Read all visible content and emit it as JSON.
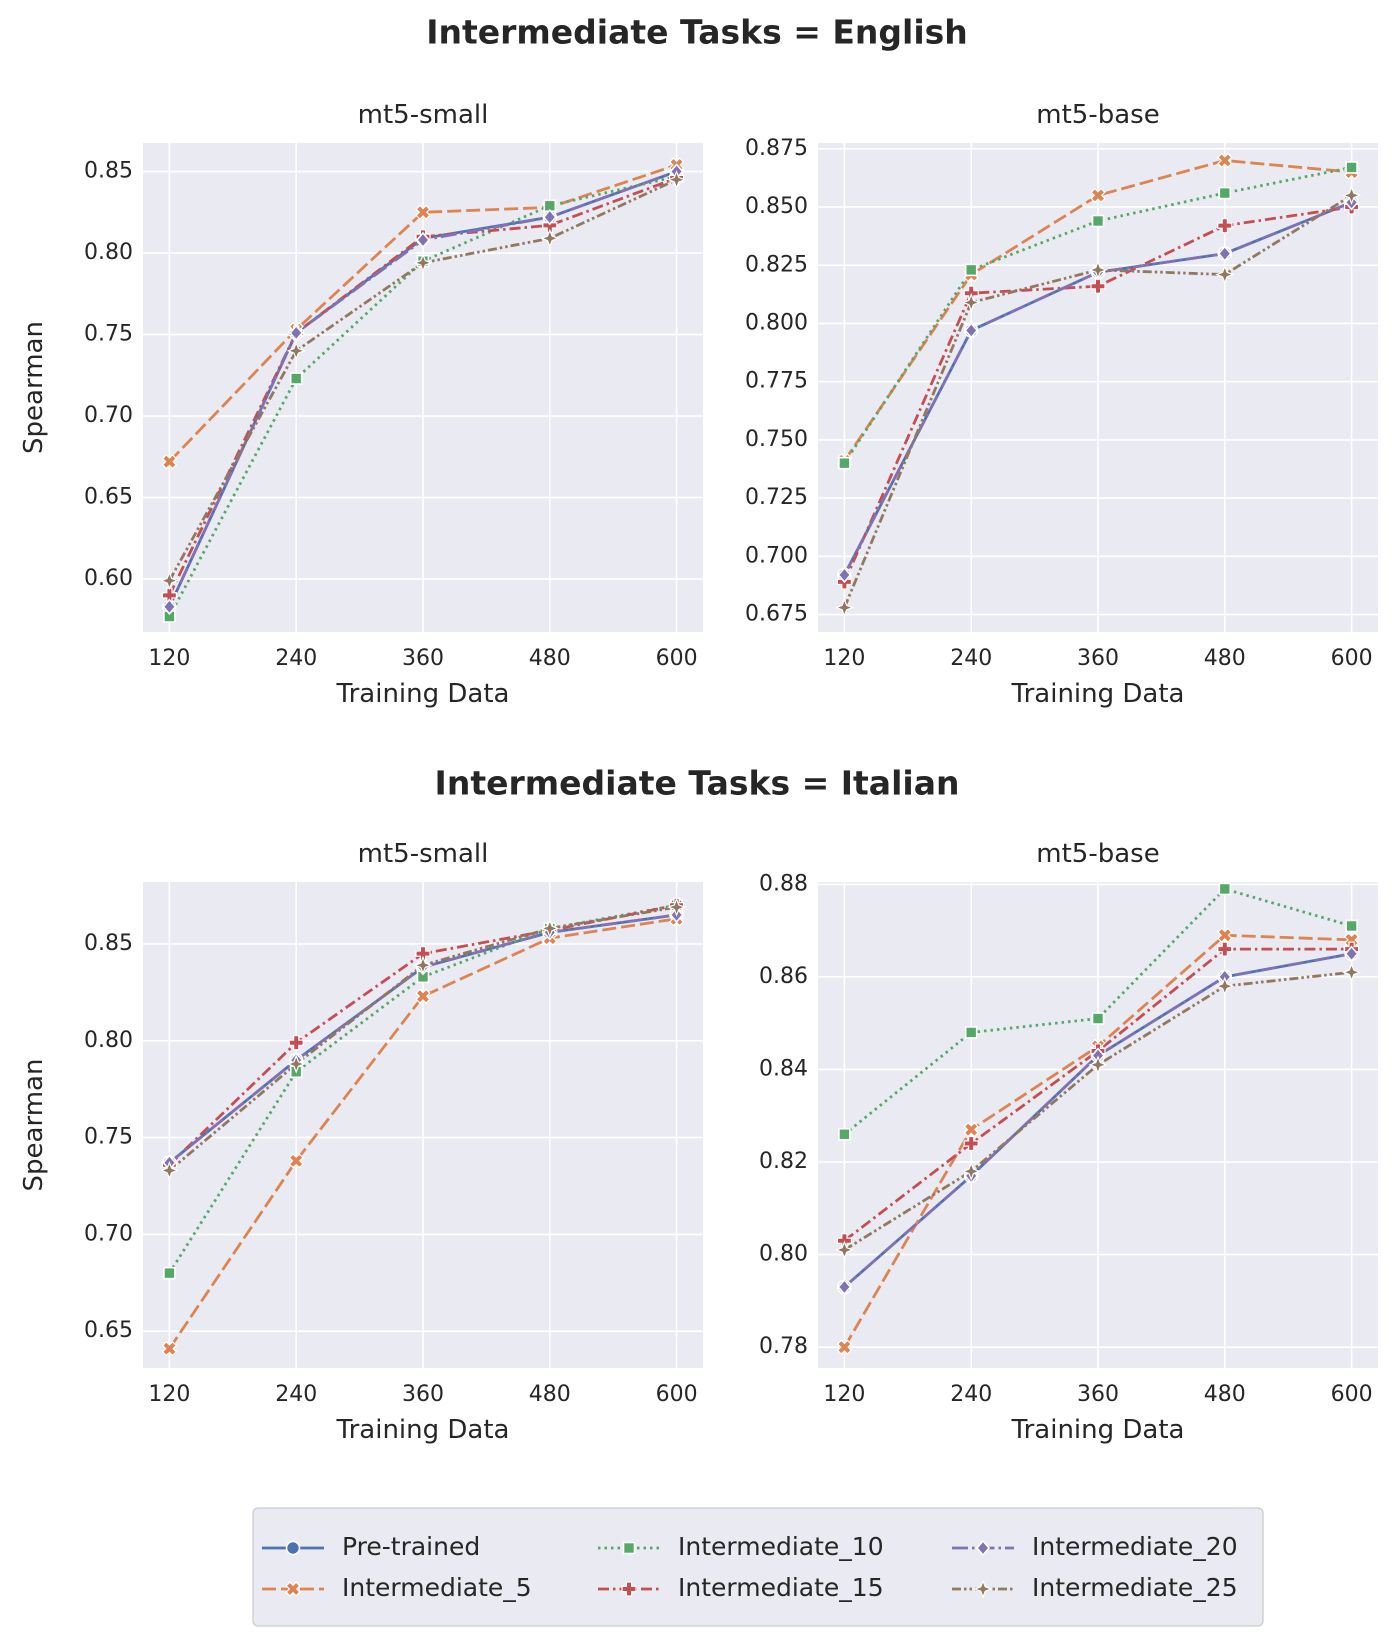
{
  "chart_data": {
    "type": "line",
    "x": [
      120,
      240,
      360,
      480,
      600
    ],
    "x_ticks": [
      "120",
      "240",
      "360",
      "480",
      "600"
    ],
    "xlabel": "Training Data",
    "ylabel": "Spearman",
    "grid": true,
    "legend": {
      "placement": "bottom-center",
      "entries": [
        {
          "name": "Pre-trained",
          "color": "#4c72b0",
          "marker": "circle",
          "dash": "solid"
        },
        {
          "name": "Intermediate_5",
          "color": "#dd8452",
          "marker": "x",
          "dash": "dashed"
        },
        {
          "name": "Intermediate_10",
          "color": "#55a868",
          "marker": "square",
          "dash": "dotted"
        },
        {
          "name": "Intermediate_15",
          "color": "#c44e52",
          "marker": "plus",
          "dash": "dashdot"
        },
        {
          "name": "Intermediate_20",
          "color": "#8172b3",
          "marker": "diamond",
          "dash": "longdashdot"
        },
        {
          "name": "Intermediate_25",
          "color": "#937860",
          "marker": "star",
          "dash": "dashdotdot"
        }
      ]
    },
    "groups": [
      {
        "title": "Intermediate Tasks = English",
        "panels": [
          {
            "title": "mt5-small",
            "ylim": [
              0.5675,
              0.8675
            ],
            "yticks": [
              0.6,
              0.65,
              0.7,
              0.75,
              0.8,
              0.85
            ],
            "ytick_labels": [
              "0.60",
              "0.65",
              "0.70",
              "0.75",
              "0.80",
              "0.85"
            ],
            "series": [
              {
                "name": "Pre-trained",
                "values": [
                  0.583,
                  0.751,
                  0.809,
                  0.822,
                  0.85
                ]
              },
              {
                "name": "Intermediate_5",
                "values": [
                  0.672,
                  0.753,
                  0.825,
                  0.828,
                  0.854
                ]
              },
              {
                "name": "Intermediate_10",
                "values": [
                  0.577,
                  0.723,
                  0.795,
                  0.829,
                  0.847
                ]
              },
              {
                "name": "Intermediate_15",
                "values": [
                  0.59,
                  0.751,
                  0.81,
                  0.817,
                  0.846
                ]
              },
              {
                "name": "Intermediate_20",
                "values": [
                  0.583,
                  0.751,
                  0.808,
                  0.822,
                  0.85
                ]
              },
              {
                "name": "Intermediate_25",
                "values": [
                  0.599,
                  0.74,
                  0.794,
                  0.809,
                  0.845
                ]
              }
            ]
          },
          {
            "title": "mt5-base",
            "ylim": [
              0.6675,
              0.8775
            ],
            "yticks": [
              0.675,
              0.7,
              0.725,
              0.75,
              0.775,
              0.8,
              0.825,
              0.85,
              0.875
            ],
            "ytick_labels": [
              "0.675",
              "0.700",
              "0.725",
              "0.750",
              "0.775",
              "0.800",
              "0.825",
              "0.850",
              "0.875"
            ],
            "series": [
              {
                "name": "Pre-trained",
                "values": [
                  0.692,
                  0.797,
                  0.822,
                  0.83,
                  0.852
                ]
              },
              {
                "name": "Intermediate_5",
                "values": [
                  0.741,
                  0.821,
                  0.855,
                  0.87,
                  0.865
                ]
              },
              {
                "name": "Intermediate_10",
                "values": [
                  0.74,
                  0.823,
                  0.844,
                  0.856,
                  0.867
                ]
              },
              {
                "name": "Intermediate_15",
                "values": [
                  0.689,
                  0.813,
                  0.816,
                  0.842,
                  0.85
                ]
              },
              {
                "name": "Intermediate_20",
                "values": [
                  0.692,
                  0.797,
                  0.822,
                  0.83,
                  0.852
                ]
              },
              {
                "name": "Intermediate_25",
                "values": [
                  0.678,
                  0.809,
                  0.823,
                  0.821,
                  0.855
                ]
              }
            ]
          }
        ]
      },
      {
        "title": "Intermediate Tasks = Italian",
        "panels": [
          {
            "title": "mt5-small",
            "ylim": [
              0.631,
              0.882
            ],
            "yticks": [
              0.65,
              0.7,
              0.75,
              0.8,
              0.85
            ],
            "ytick_labels": [
              "0.65",
              "0.70",
              "0.75",
              "0.80",
              "0.85"
            ],
            "series": [
              {
                "name": "Pre-trained",
                "values": [
                  0.737,
                  0.79,
                  0.838,
                  0.856,
                  0.865
                ]
              },
              {
                "name": "Intermediate_5",
                "values": [
                  0.641,
                  0.738,
                  0.823,
                  0.853,
                  0.863
                ]
              },
              {
                "name": "Intermediate_10",
                "values": [
                  0.68,
                  0.784,
                  0.833,
                  0.858,
                  0.87
                ]
              },
              {
                "name": "Intermediate_15",
                "values": [
                  0.736,
                  0.799,
                  0.845,
                  0.857,
                  0.87
                ]
              },
              {
                "name": "Intermediate_20",
                "values": [
                  0.737,
                  0.79,
                  0.838,
                  0.856,
                  0.865
                ]
              },
              {
                "name": "Intermediate_25",
                "values": [
                  0.733,
                  0.788,
                  0.839,
                  0.858,
                  0.869
                ]
              }
            ]
          },
          {
            "title": "mt5-base",
            "ylim": [
              0.7755,
              0.8805
            ],
            "yticks": [
              0.78,
              0.8,
              0.82,
              0.84,
              0.86,
              0.88
            ],
            "ytick_labels": [
              "0.78",
              "0.80",
              "0.82",
              "0.84",
              "0.86",
              "0.88"
            ],
            "series": [
              {
                "name": "Pre-trained",
                "values": [
                  0.793,
                  0.817,
                  0.843,
                  0.86,
                  0.865
                ]
              },
              {
                "name": "Intermediate_5",
                "values": [
                  0.78,
                  0.827,
                  0.845,
                  0.869,
                  0.868
                ]
              },
              {
                "name": "Intermediate_10",
                "values": [
                  0.826,
                  0.848,
                  0.851,
                  0.879,
                  0.871
                ]
              },
              {
                "name": "Intermediate_15",
                "values": [
                  0.803,
                  0.824,
                  0.844,
                  0.866,
                  0.866
                ]
              },
              {
                "name": "Intermediate_20",
                "values": [
                  0.793,
                  0.817,
                  0.843,
                  0.86,
                  0.865
                ]
              },
              {
                "name": "Intermediate_25",
                "values": [
                  0.801,
                  0.818,
                  0.841,
                  0.858,
                  0.861
                ]
              }
            ]
          }
        ]
      }
    ]
  }
}
